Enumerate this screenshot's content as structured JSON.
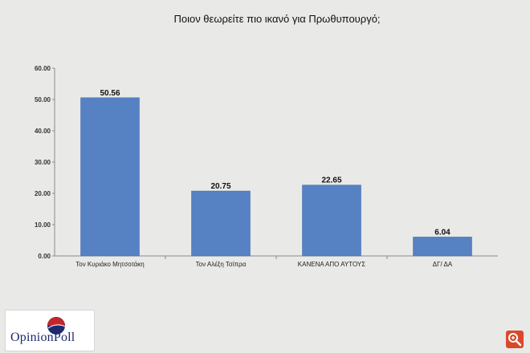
{
  "brand": {
    "logo_text": "OpinionPoll"
  },
  "colors": {
    "bar": "#5681c3",
    "bar_edge": "#3f69a8",
    "axis": "#8a8a8a",
    "background": "#e9e9e8",
    "logo_red": "#c0272d",
    "logo_blue": "#1e2a6e"
  },
  "icons": {
    "zoom": "zoom-icon"
  },
  "chart_data": {
    "type": "bar",
    "title": "Ποιον θεωρείτε πιο ικανό για Πρωθυπουργό;",
    "categories": [
      "Τον Κυριάκο Μητσοτάκη",
      "Τον Αλέξη Τσίπρα",
      "ΚΑΝΕΝΑ ΑΠΟ ΑΥΤΟΥΣ",
      "ΔΓ/ ΔΑ"
    ],
    "values": [
      50.56,
      20.75,
      22.65,
      6.04
    ],
    "value_labels": [
      "50.56",
      "20.75",
      "22.65",
      "6.04"
    ],
    "ylim": [
      0,
      60
    ],
    "yticks": [
      "0.00",
      "10.00",
      "20.00",
      "30.00",
      "40.00",
      "50.00",
      "60.00"
    ],
    "grid": false,
    "legend": "none"
  }
}
